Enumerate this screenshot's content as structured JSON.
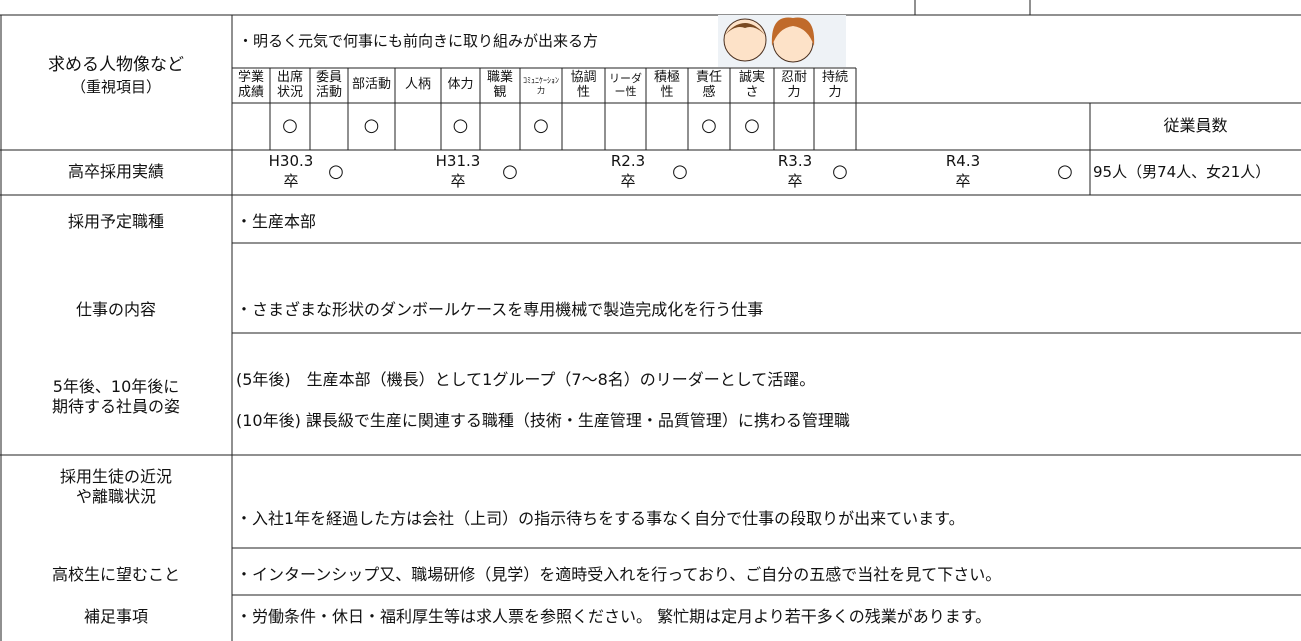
{
  "person": {
    "label": "求める人物像など",
    "sublabel": "（重視項目）",
    "description": "・明るく元気で何事にも前向きに取り組みが出来る方",
    "criteria": [
      {
        "name": "学業成績"
      },
      {
        "name": "出席状況",
        "mark": "○"
      },
      {
        "name": "委員活動"
      },
      {
        "name": "部活動",
        "mark": "○"
      },
      {
        "name": "人柄"
      },
      {
        "name": "体力",
        "mark": "○"
      },
      {
        "name": "職業観"
      },
      {
        "name": "ｺﾐｭﾆｹｰｼｮﾝ力",
        "mark": "○"
      },
      {
        "name": "協調性"
      },
      {
        "name": "リーダー性"
      },
      {
        "name": "積極性"
      },
      {
        "name": "責任感",
        "mark": "○"
      },
      {
        "name": "誠実さ",
        "mark": "○"
      },
      {
        "name": "忍耐力"
      },
      {
        "name": "持続力"
      }
    ]
  },
  "employees": {
    "label": "従業員数",
    "value": "95人（男74人、女21人）"
  },
  "hiring": {
    "label": "高卒採用実績",
    "items": [
      {
        "year": "H30.3",
        "suffix": "卒",
        "mark": "○"
      },
      {
        "year": "H31.3",
        "suffix": "卒",
        "mark": "○"
      },
      {
        "year": "R2.3",
        "suffix": "卒",
        "mark": "○"
      },
      {
        "year": "R3.3",
        "suffix": "卒",
        "mark": "○"
      },
      {
        "year": "R4.3",
        "suffix": "卒",
        "mark": "○"
      }
    ]
  },
  "rows": [
    {
      "label": [
        "採用予定職種"
      ],
      "lines": [
        "・生産本部"
      ]
    },
    {
      "label": [
        "仕事の内容"
      ],
      "lines": [
        "・さまざまな形状のダンボールケースを専用機械で製造完成化を行う仕事"
      ]
    },
    {
      "label": [
        "5年後、10年後に",
        "期待する社員の姿"
      ],
      "lines": [
        "(5年後)　生産本部（機長）として1グループ（7～8名）のリーダーとして活躍。",
        "(10年後) 課長級で生産に関連する職種（技術・生産管理・品質管理）に携わる管理職"
      ]
    },
    {
      "label": [
        "採用生徒の近況",
        "や離職状況"
      ],
      "lines": [
        "・入社1年を経過した方は会社（上司）の指示待ちをする事なく自分で仕事の段取りが出来ています。"
      ]
    },
    {
      "label": [
        "高校生に望むこと"
      ],
      "lines": [
        "・インターンシップ又、職場研修（見学）を適時受入れを行っており、ご自分の五感で当社を見て下さい。"
      ]
    },
    {
      "label": [
        "補足事項"
      ],
      "lines": [
        "・労働条件・休日・福利厚生等は求人票を参照ください。 繁忙期は定月より若干多くの残業があります。"
      ]
    }
  ]
}
